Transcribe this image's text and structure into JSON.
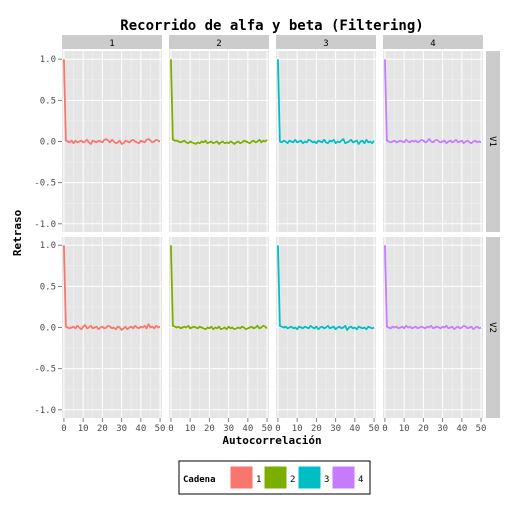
{
  "chart_data": {
    "type": "line",
    "title": "Recorrido de alfa y beta (Filtering)",
    "xlabel": "Autocorrelación",
    "ylabel": "Retraso",
    "xlim": [
      -1,
      51
    ],
    "ylim": [
      -1.1,
      1.1
    ],
    "x_ticks": [
      0,
      10,
      20,
      30,
      40,
      50
    ],
    "x_tick_labels": [
      "0",
      "10",
      "20",
      "30",
      "40",
      "50"
    ],
    "y_ticks": [
      -1.0,
      -0.5,
      0.0,
      0.5,
      1.0
    ],
    "y_tick_labels": [
      "-1.0",
      "-0.5",
      "0.0",
      "0.5",
      "1.0"
    ],
    "grid": true,
    "facet_columns": [
      "1",
      "2",
      "3",
      "4"
    ],
    "facet_rows": [
      "V1",
      "V2"
    ],
    "legend": {
      "title": "Cadena",
      "position": "bottom",
      "items": [
        {
          "label": "1",
          "color": "#F8766D"
        },
        {
          "label": "2",
          "color": "#7CAE00"
        },
        {
          "label": "3",
          "color": "#00BFC4"
        },
        {
          "label": "4",
          "color": "#C77CFF"
        }
      ]
    },
    "x": [
      0,
      1,
      2,
      3,
      4,
      5,
      6,
      7,
      8,
      9,
      10,
      11,
      12,
      13,
      14,
      15,
      16,
      17,
      18,
      19,
      20,
      21,
      22,
      23,
      24,
      25,
      26,
      27,
      28,
      29,
      30,
      31,
      32,
      33,
      34,
      35,
      36,
      37,
      38,
      39,
      40,
      41,
      42,
      43,
      44,
      45,
      46,
      47,
      48,
      49,
      50
    ],
    "panels": [
      {
        "row": "V1",
        "column": "1",
        "series": "1",
        "values": [
          1.0,
          0.01,
          0.0,
          -0.01,
          0.01,
          -0.02,
          0.01,
          -0.01,
          0.0,
          0.01,
          -0.01,
          0.0,
          0.02,
          -0.01,
          -0.03,
          0.01,
          0.0,
          -0.01,
          0.01,
          0.0,
          -0.01,
          0.02,
          0.03,
          0.01,
          -0.01,
          0.02,
          0.0,
          -0.02,
          -0.01,
          0.01,
          -0.03,
          -0.02,
          0.01,
          0.0,
          -0.01,
          0.01,
          0.02,
          0.0,
          -0.01,
          -0.02,
          0.01,
          0.0,
          -0.01,
          0.02,
          0.03,
          0.01,
          -0.01,
          0.0,
          0.02,
          0.01,
          0.0
        ]
      },
      {
        "row": "V1",
        "column": "2",
        "series": "2",
        "values": [
          1.0,
          0.02,
          0.01,
          0.01,
          0.0,
          -0.01,
          0.0,
          0.01,
          -0.01,
          -0.02,
          0.0,
          -0.01,
          -0.02,
          -0.03,
          -0.01,
          -0.02,
          0.0,
          -0.01,
          0.01,
          -0.02,
          -0.01,
          0.0,
          -0.02,
          -0.01,
          0.0,
          -0.03,
          -0.01,
          0.0,
          -0.02,
          -0.01,
          -0.02,
          0.0,
          -0.01,
          -0.03,
          -0.01,
          0.0,
          -0.02,
          -0.01,
          0.01,
          0.0,
          -0.01,
          -0.02,
          0.0,
          0.01,
          -0.01,
          0.0,
          0.02,
          -0.01,
          0.01,
          0.0,
          0.02
        ]
      },
      {
        "row": "V1",
        "column": "3",
        "series": "3",
        "values": [
          1.0,
          0.0,
          -0.01,
          0.01,
          0.0,
          -0.02,
          0.01,
          0.0,
          -0.01,
          0.02,
          -0.01,
          0.0,
          0.01,
          -0.02,
          0.0,
          -0.01,
          0.02,
          0.01,
          -0.01,
          0.0,
          -0.02,
          0.01,
          0.0,
          -0.01,
          0.02,
          -0.01,
          -0.02,
          0.01,
          0.0,
          0.02,
          -0.02,
          0.0,
          -0.01,
          0.01,
          0.03,
          -0.02,
          -0.01,
          0.0,
          0.02,
          -0.01,
          0.0,
          0.01,
          -0.03,
          0.0,
          0.01,
          -0.02,
          0.02,
          -0.01,
          0.0,
          -0.02,
          0.01
        ]
      },
      {
        "row": "V1",
        "column": "4",
        "series": "4",
        "values": [
          1.0,
          0.01,
          0.0,
          -0.01,
          0.0,
          0.01,
          -0.01,
          0.0,
          0.01,
          0.0,
          -0.01,
          0.02,
          0.0,
          -0.01,
          0.01,
          0.0,
          0.01,
          -0.01,
          0.0,
          0.02,
          0.01,
          -0.01,
          0.0,
          0.03,
          0.0,
          -0.01,
          0.01,
          0.02,
          0.0,
          -0.01,
          0.0,
          0.01,
          -0.02,
          0.0,
          0.01,
          -0.01,
          0.0,
          0.02,
          -0.01,
          0.0,
          0.01,
          -0.02,
          0.0,
          0.01,
          -0.01,
          -0.02,
          0.0,
          0.01,
          -0.01,
          0.0,
          -0.01
        ]
      },
      {
        "row": "V2",
        "column": "1",
        "series": "1",
        "values": [
          1.0,
          0.01,
          0.0,
          -0.01,
          0.0,
          0.01,
          -0.01,
          0.02,
          0.0,
          -0.02,
          0.01,
          0.03,
          -0.01,
          0.0,
          0.02,
          -0.01,
          0.0,
          0.01,
          -0.02,
          0.0,
          0.01,
          -0.01,
          0.0,
          0.02,
          0.01,
          -0.01,
          0.0,
          -0.02,
          0.01,
          0.0,
          -0.03,
          -0.01,
          0.01,
          -0.02,
          0.0,
          0.01,
          -0.01,
          0.02,
          0.0,
          -0.01,
          0.01,
          0.0,
          0.02,
          -0.01,
          0.04,
          0.0,
          0.01,
          -0.01,
          0.02,
          0.0,
          0.01
        ]
      },
      {
        "row": "V2",
        "column": "2",
        "series": "2",
        "values": [
          1.0,
          0.02,
          0.01,
          0.0,
          0.01,
          -0.01,
          0.0,
          0.01,
          0.0,
          0.02,
          -0.01,
          0.0,
          0.01,
          0.0,
          -0.01,
          0.01,
          0.0,
          -0.01,
          -0.02,
          0.0,
          -0.01,
          0.01,
          -0.02,
          0.0,
          -0.01,
          0.01,
          -0.02,
          -0.01,
          0.0,
          -0.02,
          0.01,
          -0.01,
          0.0,
          -0.02,
          -0.01,
          0.0,
          -0.01,
          0.01,
          0.0,
          -0.02,
          -0.01,
          0.0,
          0.01,
          -0.01,
          0.0,
          0.02,
          -0.01,
          0.0,
          0.02,
          0.01,
          -0.01
        ]
      },
      {
        "row": "V2",
        "column": "3",
        "series": "3",
        "values": [
          1.0,
          0.02,
          0.01,
          0.0,
          0.01,
          -0.01,
          0.0,
          0.01,
          -0.01,
          0.0,
          -0.02,
          0.01,
          0.0,
          -0.01,
          0.01,
          0.0,
          -0.01,
          0.02,
          0.0,
          -0.01,
          0.01,
          -0.02,
          0.0,
          0.01,
          -0.01,
          0.0,
          0.02,
          -0.01,
          0.0,
          0.01,
          -0.02,
          0.0,
          0.01,
          -0.01,
          0.0,
          0.02,
          -0.03,
          0.0,
          0.01,
          -0.01,
          0.0,
          -0.02,
          0.01,
          0.0,
          -0.01,
          0.0,
          -0.02,
          0.01,
          0.0,
          -0.01,
          0.0
        ]
      },
      {
        "row": "V2",
        "column": "4",
        "series": "4",
        "values": [
          1.0,
          0.01,
          0.0,
          -0.01,
          0.01,
          0.0,
          0.01,
          -0.01,
          0.0,
          0.01,
          -0.01,
          0.02,
          0.0,
          0.01,
          -0.01,
          0.0,
          0.01,
          -0.01,
          0.0,
          0.01,
          0.0,
          -0.01,
          0.01,
          0.0,
          0.02,
          -0.01,
          0.0,
          0.01,
          0.0,
          -0.01,
          0.01,
          0.0,
          0.02,
          -0.01,
          0.0,
          0.01,
          -0.02,
          0.0,
          0.01,
          -0.01,
          0.0,
          0.02,
          0.01,
          -0.01,
          0.0,
          0.01,
          -0.02,
          0.0,
          0.01,
          -0.01,
          0.0
        ]
      }
    ]
  }
}
